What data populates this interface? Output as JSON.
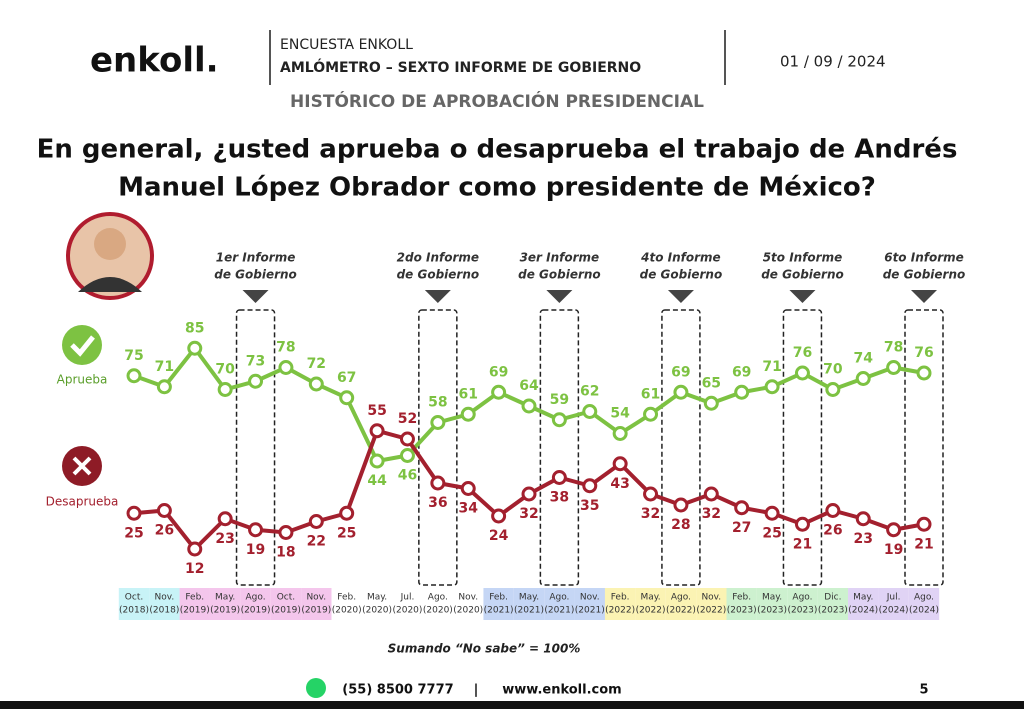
{
  "header": {
    "logo": "enkoll.",
    "survey": "ENCUESTA ENKOLL",
    "edition": "AMLÓMETRO – SEXTO INFORME DE GOBIERNO",
    "date": "01 / 09 / 2024",
    "section": "HISTÓRICO DE APROBACIÓN PRESIDENCIAL"
  },
  "chart_data": {
    "type": "line",
    "title": [
      "En general, ¿usted aprueba o desaprueba el trabajo de Andrés",
      "Manuel López Obrador como presidente de México?"
    ],
    "categories": [
      [
        "Oct.",
        "(2018)"
      ],
      [
        "Nov.",
        "(2018)"
      ],
      [
        "Feb.",
        "(2019)"
      ],
      [
        "May.",
        "(2019)"
      ],
      [
        "Ago.",
        "(2019)"
      ],
      [
        "Oct.",
        "(2019)"
      ],
      [
        "Nov.",
        "(2019)"
      ],
      [
        "Feb.",
        "(2020)"
      ],
      [
        "May.",
        "(2020)"
      ],
      [
        "Jul.",
        "(2020)"
      ],
      [
        "Ago.",
        "(2020)"
      ],
      [
        "Nov.",
        "(2020)"
      ],
      [
        "Feb.",
        "(2021)"
      ],
      [
        "May.",
        "(2021)"
      ],
      [
        "Ago.",
        "(2021)"
      ],
      [
        "Nov.",
        "(2021)"
      ],
      [
        "Feb.",
        "(2022)"
      ],
      [
        "May.",
        "(2022)"
      ],
      [
        "Ago.",
        "(2022)"
      ],
      [
        "Nov.",
        "(2022)"
      ],
      [
        "Feb.",
        "(2023)"
      ],
      [
        "May.",
        "(2023)"
      ],
      [
        "Ago.",
        "(2023)"
      ],
      [
        "Dic.",
        "(2023)"
      ],
      [
        "May.",
        "(2024)"
      ],
      [
        "Jul.",
        "(2024)"
      ],
      [
        "Ago.",
        "(2024)"
      ]
    ],
    "category_colors": [
      "#c8f3f7",
      "#c8f3f7",
      "#f4c6ec",
      "#f4c6ec",
      "#f4c6ec",
      "#f4c6ec",
      "#f4c6ec",
      null,
      null,
      null,
      null,
      null,
      "#c5d6f5",
      "#c5d6f5",
      "#c5d6f5",
      "#c5d6f5",
      "#fbf3b3",
      "#fbf3b3",
      "#fbf3b3",
      "#fbf3b3",
      "#cdf1cf",
      "#cdf1cf",
      "#cdf1cf",
      "#cdf1cf",
      "#e0d3f5",
      "#e0d3f5",
      "#e0d3f5"
    ],
    "informes": [
      null,
      null,
      null,
      null,
      [
        "1er Informe",
        "de Gobierno"
      ],
      null,
      null,
      null,
      null,
      null,
      [
        "2do Informe",
        "de Gobierno"
      ],
      null,
      null,
      null,
      [
        "3er Informe",
        "de Gobierno"
      ],
      null,
      null,
      null,
      [
        "4to Informe",
        "de Gobierno"
      ],
      null,
      null,
      null,
      [
        "5to Informe",
        "de Gobierno"
      ],
      null,
      null,
      null,
      [
        "6to Informe",
        "de Gobierno"
      ]
    ],
    "series": [
      {
        "name": "Aprueba",
        "color": "#7dc242",
        "values": [
          75,
          71,
          85,
          70,
          73,
          78,
          72,
          67,
          44,
          46,
          58,
          61,
          69,
          64,
          59,
          62,
          54,
          61,
          69,
          65,
          69,
          71,
          76,
          70,
          74,
          78,
          76
        ]
      },
      {
        "name": "Desaprueba",
        "color": "#a3202e",
        "values": [
          25,
          26,
          12,
          23,
          19,
          18,
          22,
          25,
          55,
          52,
          36,
          34,
          24,
          32,
          38,
          35,
          43,
          32,
          28,
          32,
          27,
          25,
          21,
          26,
          23,
          19,
          21
        ]
      }
    ],
    "ylim": [
      0,
      100
    ],
    "note": "Sumando “No sabe” = 100%"
  },
  "footer": {
    "phone": "(55) 8500 7777",
    "separator": "|",
    "website": "www.enkoll.com",
    "page": "5"
  }
}
